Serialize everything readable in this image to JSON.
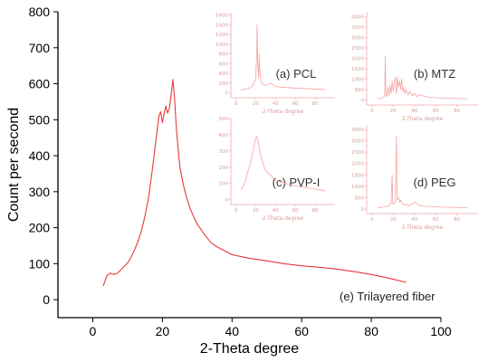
{
  "colors": {
    "main_line": "#e8383c",
    "inset_line": "#f5a3a3"
  },
  "chart_data": [
    {
      "id": "main",
      "type": "line",
      "title": "",
      "xlabel": "2-Theta degree",
      "ylabel": "Count per second",
      "xlim": [
        -10,
        100
      ],
      "ylim": [
        -50,
        800
      ],
      "xticks": [
        0,
        20,
        40,
        60,
        80,
        100
      ],
      "yticks": [
        0,
        100,
        200,
        300,
        400,
        500,
        600,
        700,
        800
      ],
      "annotation": "(e) Trilayered fiber",
      "series": [
        {
          "x": [
            3,
            4,
            5,
            6,
            7,
            8,
            9,
            10,
            11,
            12,
            13,
            14,
            15,
            16,
            17,
            18,
            19,
            19.5,
            20,
            20.5,
            21,
            21.5,
            22,
            22.5,
            23,
            23.5,
            24,
            24.5,
            25,
            26,
            27,
            28,
            29,
            30,
            32,
            34,
            36,
            38,
            40,
            45,
            50,
            55,
            60,
            65,
            70,
            75,
            80,
            85,
            90
          ],
          "y": [
            38,
            65,
            74,
            70,
            73,
            82,
            92,
            102,
            118,
            138,
            162,
            192,
            232,
            282,
            352,
            432,
            510,
            522,
            492,
            518,
            538,
            518,
            532,
            570,
            612,
            560,
            480,
            420,
            370,
            320,
            282,
            252,
            230,
            210,
            182,
            158,
            145,
            135,
            125,
            115,
            108,
            100,
            94,
            90,
            85,
            78,
            70,
            60,
            48
          ]
        }
      ]
    },
    {
      "id": "inset-a",
      "type": "line",
      "title": "",
      "xlabel": "2-Theta degree",
      "ylabel": "",
      "xlim": [
        -5,
        100
      ],
      "ylim": [
        -100,
        1650
      ],
      "xticks": [
        0,
        20,
        40,
        60,
        80
      ],
      "yticks": [
        0,
        200,
        400,
        600,
        800,
        1000,
        1200,
        1400,
        1600
      ],
      "annotation": "(a) PCL",
      "series": [
        {
          "x": [
            5,
            10,
            15,
            18,
            20,
            21,
            21.5,
            22,
            23,
            23.5,
            24,
            25,
            27,
            30,
            35,
            40,
            45,
            50,
            60,
            70,
            80,
            90
          ],
          "y": [
            60,
            80,
            110,
            180,
            300,
            800,
            1400,
            600,
            300,
            800,
            500,
            250,
            180,
            150,
            200,
            130,
            120,
            110,
            100,
            90,
            80,
            70
          ]
        }
      ]
    },
    {
      "id": "inset-b",
      "type": "line",
      "title": "",
      "xlabel": "2-Theta degree",
      "ylabel": "",
      "xlim": [
        -5,
        100
      ],
      "ylim": [
        -250,
        4200
      ],
      "xticks": [
        0,
        20,
        40,
        60,
        80
      ],
      "yticks": [
        0,
        500,
        1000,
        1500,
        2000,
        2500,
        3000,
        3500,
        4000
      ],
      "annotation": "(b) MTZ",
      "series": [
        {
          "x": [
            5,
            10,
            12,
            12.5,
            13,
            14,
            15,
            16,
            17,
            18,
            19,
            20,
            21,
            22,
            23,
            24,
            25,
            26,
            27,
            28,
            29,
            30,
            31,
            32,
            34,
            36,
            38,
            40,
            42,
            45,
            50,
            55,
            60,
            70,
            80,
            90
          ],
          "y": [
            50,
            80,
            200,
            2100,
            300,
            150,
            600,
            200,
            700,
            300,
            900,
            400,
            800,
            1100,
            300,
            1100,
            600,
            900,
            500,
            1000,
            400,
            600,
            300,
            500,
            250,
            400,
            200,
            300,
            150,
            250,
            150,
            120,
            100,
            80,
            60,
            50
          ]
        }
      ]
    },
    {
      "id": "inset-c",
      "type": "line",
      "title": "",
      "xlabel": "2-Theta degree",
      "ylabel": "",
      "xlim": [
        -5,
        100
      ],
      "ylim": [
        -30,
        500
      ],
      "xticks": [
        0,
        20,
        40,
        60,
        80
      ],
      "yticks": [
        0,
        100,
        200,
        300,
        400,
        500
      ],
      "annotation": "(c) PVP-I",
      "series": [
        {
          "x": [
            5,
            8,
            10,
            12,
            14,
            16,
            18,
            20,
            21,
            22,
            23,
            24,
            26,
            28,
            30,
            35,
            40,
            50,
            60,
            70,
            80,
            90
          ],
          "y": [
            60,
            90,
            120,
            170,
            210,
            260,
            320,
            380,
            390,
            370,
            340,
            300,
            250,
            210,
            180,
            150,
            120,
            100,
            85,
            75,
            65,
            55
          ]
        }
      ]
    },
    {
      "id": "inset-d",
      "type": "line",
      "title": "",
      "xlabel": "2-Theta degree",
      "ylabel": "",
      "xlim": [
        -5,
        100
      ],
      "ylim": [
        -200,
        3700
      ],
      "xticks": [
        0,
        20,
        40,
        60,
        80
      ],
      "yticks": [
        0,
        500,
        1000,
        1500,
        2000,
        2500,
        3000,
        3500
      ],
      "annotation": "(d) PEG",
      "series": [
        {
          "x": [
            5,
            10,
            15,
            18,
            19,
            19.5,
            20,
            21,
            22,
            23,
            23.5,
            24,
            25,
            26,
            27,
            28,
            30,
            35,
            40,
            45,
            50,
            60,
            70,
            80,
            90
          ],
          "y": [
            50,
            80,
            120,
            250,
            1500,
            300,
            200,
            250,
            300,
            3200,
            800,
            400,
            500,
            300,
            400,
            250,
            200,
            150,
            300,
            150,
            120,
            100,
            80,
            70,
            60
          ]
        }
      ]
    }
  ]
}
